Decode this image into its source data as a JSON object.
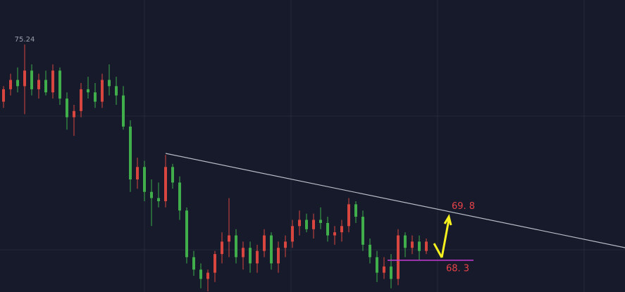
{
  "chart_data": {
    "type": "candlestick",
    "up_color": "#d9463f",
    "down_color": "#3fae4b",
    "ylim": [
      67.28,
      76.67
    ],
    "open": [
      73.4,
      73.8,
      74.1,
      73.9,
      74.4,
      73.8,
      74.1,
      73.7,
      74.4,
      73.5,
      72.9,
      73.1,
      73.8,
      73.7,
      73.4,
      74.1,
      73.9,
      73.6,
      72.6,
      70.9,
      71.3,
      70.5,
      70.3,
      70.2,
      71.3,
      70.8,
      69.9,
      68.4,
      68.0,
      67.7,
      67.9,
      68.5,
      68.9,
      69.1,
      68.4,
      68.7,
      68.2,
      68.6,
      69.1,
      68.2,
      68.7,
      68.9,
      69.4,
      69.6,
      69.3,
      69.6,
      69.5,
      69.1,
      69.2,
      69.4,
      70.1,
      69.7,
      68.8,
      68.4,
      67.9,
      68.1,
      67.7,
      69.1,
      68.7,
      68.9,
      68.6
    ],
    "high": [
      73.9,
      74.3,
      74.5,
      75.24,
      74.6,
      74.3,
      74.4,
      74.6,
      74.5,
      73.7,
      73.3,
      74.0,
      74.2,
      74.0,
      74.3,
      74.6,
      74.2,
      73.9,
      72.8,
      71.6,
      71.5,
      70.9,
      70.8,
      71.69,
      71.4,
      71.0,
      70.0,
      68.6,
      68.2,
      68.0,
      68.6,
      69.2,
      70.3,
      69.3,
      68.9,
      68.9,
      68.8,
      69.3,
      69.2,
      68.9,
      69.1,
      69.6,
      69.9,
      69.8,
      69.8,
      70.0,
      69.7,
      69.4,
      69.6,
      70.3,
      70.2,
      69.9,
      69.0,
      68.6,
      68.4,
      68.5,
      69.3,
      69.2,
      69.1,
      69.1,
      69.0
    ],
    "low": [
      73.2,
      73.6,
      73.7,
      73.0,
      73.6,
      73.5,
      73.6,
      73.5,
      73.3,
      72.5,
      72.3,
      72.9,
      73.5,
      73.2,
      73.2,
      73.6,
      73.3,
      72.5,
      70.5,
      70.6,
      70.2,
      69.4,
      70.0,
      70.0,
      70.6,
      69.6,
      68.2,
      67.8,
      67.4,
      67.3,
      67.6,
      68.2,
      68.4,
      68.2,
      68.0,
      67.9,
      67.9,
      68.4,
      68.0,
      67.9,
      68.4,
      68.7,
      69.1,
      69.2,
      69.0,
      69.3,
      68.9,
      68.8,
      68.9,
      69.2,
      69.5,
      68.6,
      68.2,
      67.6,
      67.7,
      67.4,
      67.5,
      68.4,
      68.5,
      68.3,
      68.5
    ],
    "close": [
      73.8,
      74.1,
      73.9,
      74.4,
      73.8,
      74.1,
      73.7,
      74.4,
      73.5,
      72.9,
      73.1,
      73.8,
      73.7,
      73.4,
      74.1,
      73.9,
      73.6,
      72.6,
      70.9,
      71.3,
      70.5,
      70.3,
      70.2,
      71.3,
      70.8,
      69.9,
      68.4,
      68.0,
      67.7,
      67.9,
      68.5,
      68.9,
      69.1,
      68.4,
      68.7,
      68.2,
      68.6,
      69.1,
      68.2,
      68.7,
      68.9,
      69.4,
      69.6,
      69.3,
      69.6,
      69.5,
      69.1,
      69.2,
      69.4,
      70.1,
      69.7,
      68.8,
      68.4,
      67.9,
      68.1,
      67.7,
      69.1,
      68.7,
      68.9,
      68.6,
      68.9
    ],
    "annotations": [
      {
        "value": 69.8,
        "label": "69. 8"
      },
      {
        "value": 68.3,
        "label": "68. 3"
      }
    ]
  }
}
